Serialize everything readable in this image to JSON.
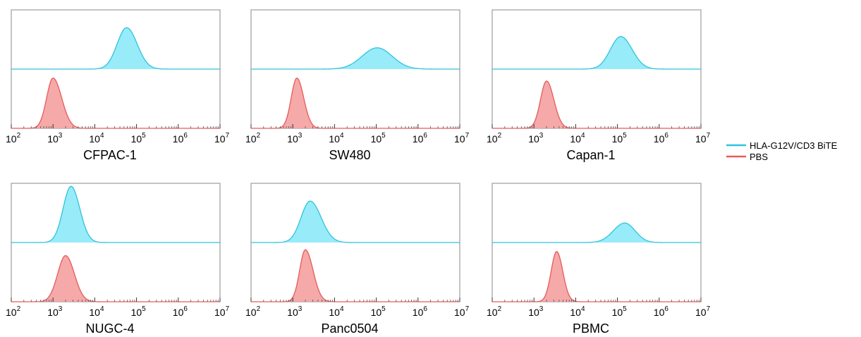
{
  "colors": {
    "bite": "#2ec4dc",
    "bite_fill": "#8de9f8",
    "pbs": "#e85a5a",
    "pbs_fill": "#f4a0a0",
    "frame": "#8a8a8a"
  },
  "legend": {
    "bite_label": "HLA-G12V/CD3 BiTE",
    "pbs_label": "PBS",
    "placement": "right"
  },
  "chart_data": [
    {
      "type": "area",
      "title": "CFPAC-1",
      "x_scale": "log",
      "xlim": [
        100,
        10000000
      ],
      "x_ticks": [
        "2",
        "3",
        "4",
        "5",
        "6",
        "7"
      ],
      "series": [
        {
          "name": "HLA-G12V/CD3 BiTE",
          "peak_x": 58000,
          "peak_height": 0.7,
          "width_decades": 0.24,
          "skew": 0.1
        },
        {
          "name": "PBS",
          "peak_x": 1000,
          "peak_height": 0.85,
          "width_decades": 0.18,
          "skew": 0.3
        }
      ]
    },
    {
      "type": "area",
      "title": "SW480",
      "x_scale": "log",
      "xlim": [
        100,
        10000000
      ],
      "x_ticks": [
        "2",
        "3",
        "4",
        "5",
        "6",
        "7"
      ],
      "series": [
        {
          "name": "HLA-G12V/CD3 BiTE",
          "peak_x": 105000,
          "peak_height": 0.36,
          "width_decades": 0.36,
          "skew": 0
        },
        {
          "name": "PBS",
          "peak_x": 1250,
          "peak_height": 0.85,
          "width_decades": 0.15,
          "skew": 0.2
        }
      ]
    },
    {
      "type": "area",
      "title": "Capan-1",
      "x_scale": "log",
      "xlim": [
        100,
        10000000
      ],
      "x_ticks": [
        "2",
        "3",
        "4",
        "5",
        "6",
        "7"
      ],
      "series": [
        {
          "name": "HLA-G12V/CD3 BiTE",
          "peak_x": 120000,
          "peak_height": 0.55,
          "width_decades": 0.26,
          "skew": 0.1
        },
        {
          "name": "PBS",
          "peak_x": 2000,
          "peak_height": 0.8,
          "width_decades": 0.16,
          "skew": 0.2
        }
      ]
    },
    {
      "type": "area",
      "title": "NUGC-4",
      "x_scale": "log",
      "xlim": [
        100,
        10000000
      ],
      "x_ticks": [
        "2",
        "3",
        "4",
        "5",
        "6",
        "7"
      ],
      "series": [
        {
          "name": "HLA-G12V/CD3 BiTE",
          "peak_x": 2700,
          "peak_height": 0.95,
          "width_decades": 0.2,
          "skew": 0.1
        },
        {
          "name": "PBS",
          "peak_x": 2000,
          "peak_height": 0.78,
          "width_decades": 0.2,
          "skew": 0.1
        }
      ]
    },
    {
      "type": "area",
      "title": "Panc0504",
      "x_scale": "log",
      "xlim": [
        100,
        10000000
      ],
      "x_ticks": [
        "2",
        "3",
        "4",
        "5",
        "6",
        "7"
      ],
      "series": [
        {
          "name": "HLA-G12V/CD3 BiTE",
          "peak_x": 2600,
          "peak_height": 0.7,
          "width_decades": 0.24,
          "skew": 0.2
        },
        {
          "name": "PBS",
          "peak_x": 2000,
          "peak_height": 0.88,
          "width_decades": 0.16,
          "skew": 0.3
        }
      ]
    },
    {
      "type": "area",
      "title": "PBMC",
      "x_scale": "log",
      "xlim": [
        100,
        10000000
      ],
      "x_ticks": [
        "2",
        "3",
        "4",
        "5",
        "6",
        "7"
      ],
      "series": [
        {
          "name": "HLA-G12V/CD3 BiTE",
          "peak_x": 150000,
          "peak_height": 0.33,
          "width_decades": 0.26,
          "skew": -0.1
        },
        {
          "name": "PBS",
          "peak_x": 3500,
          "peak_height": 0.85,
          "width_decades": 0.14,
          "skew": 0.1
        }
      ]
    }
  ]
}
